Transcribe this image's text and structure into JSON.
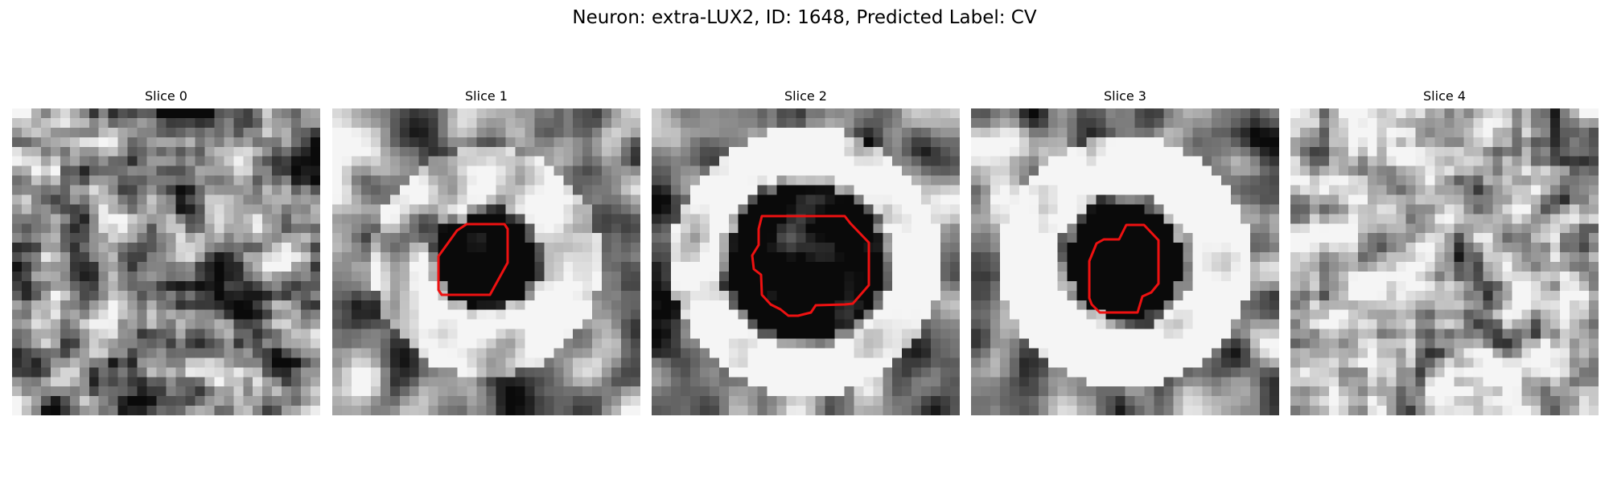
{
  "figure": {
    "title": "Neuron: extra-LUX2, ID: 1648, Predicted Label: CV"
  },
  "panels": [
    {
      "title": "Slice 0",
      "has_roi": false,
      "pattern": "noise"
    },
    {
      "title": "Slice 1",
      "has_roi": true,
      "pattern": "ring-small"
    },
    {
      "title": "Slice 2",
      "has_roi": true,
      "pattern": "ring-large"
    },
    {
      "title": "Slice 3",
      "has_roi": true,
      "pattern": "ring-dark"
    },
    {
      "title": "Slice 4",
      "has_roi": false,
      "pattern": "bright-noise"
    }
  ],
  "colors": {
    "roi_outline": "#ee1111",
    "background": "#ffffff"
  },
  "colormap": "gray"
}
